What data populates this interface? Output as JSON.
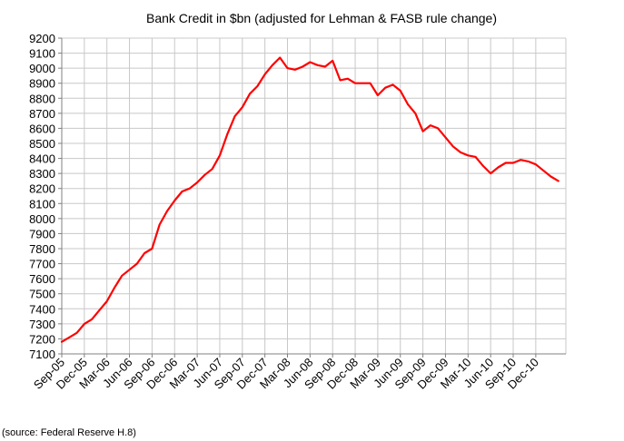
{
  "chart_data": {
    "type": "line",
    "title": "Bank Credit in $bn (adjusted for Lehman & FASB rule change)",
    "xlabel": "",
    "ylabel": "",
    "source_note": "(source:  Federal Reserve H.8)",
    "ylim": [
      7100,
      9200
    ],
    "yticks": [
      7100,
      7200,
      7300,
      7400,
      7500,
      7600,
      7700,
      7800,
      7900,
      8000,
      8100,
      8200,
      8300,
      8400,
      8500,
      8600,
      8700,
      8800,
      8900,
      9000,
      9100,
      9200
    ],
    "xlim": [
      "2005-09",
      "2011-04"
    ],
    "x_tick_labels": [
      "Sep-05",
      "Dec-05",
      "Mar-06",
      "Jun-06",
      "Sep-06",
      "Dec-06",
      "Mar-07",
      "Jun-07",
      "Sep-07",
      "Dec-07",
      "Mar-08",
      "Jun-08",
      "Sep-08",
      "Dec-08",
      "Mar-09",
      "Jun-09",
      "Sep-09",
      "Dec-09",
      "Mar-10",
      "Jun-10",
      "Sep-10",
      "Dec-10"
    ],
    "grid": true,
    "legend": "none",
    "series": [
      {
        "color": "#ff0000",
        "x": [
          "2005-09",
          "2005-10",
          "2005-11",
          "2005-12",
          "2006-01",
          "2006-02",
          "2006-03",
          "2006-04",
          "2006-05",
          "2006-06",
          "2006-07",
          "2006-08",
          "2006-09",
          "2006-10",
          "2006-11",
          "2006-12",
          "2007-01",
          "2007-02",
          "2007-03",
          "2007-04",
          "2007-05",
          "2007-06",
          "2007-07",
          "2007-08",
          "2007-09",
          "2007-10",
          "2007-11",
          "2007-12",
          "2008-01",
          "2008-02",
          "2008-03",
          "2008-04",
          "2008-05",
          "2008-06",
          "2008-07",
          "2008-08",
          "2008-09",
          "2008-10",
          "2008-11",
          "2008-12",
          "2009-01",
          "2009-02",
          "2009-03",
          "2009-04",
          "2009-05",
          "2009-06",
          "2009-07",
          "2009-08",
          "2009-09",
          "2009-10",
          "2009-11",
          "2009-12",
          "2010-01",
          "2010-02",
          "2010-03",
          "2010-04",
          "2010-05",
          "2010-06",
          "2010-07",
          "2010-08",
          "2010-09",
          "2010-10",
          "2010-11",
          "2010-12",
          "2011-01",
          "2011-02",
          "2011-03"
        ],
        "y": [
          7180,
          7210,
          7240,
          7300,
          7330,
          7390,
          7450,
          7540,
          7620,
          7660,
          7700,
          7770,
          7800,
          7960,
          8050,
          8120,
          8180,
          8200,
          8240,
          8290,
          8330,
          8420,
          8560,
          8680,
          8740,
          8830,
          8880,
          8960,
          9020,
          9070,
          9000,
          8990,
          9010,
          9040,
          9020,
          9010,
          9050,
          8920,
          8930,
          8900,
          8900,
          8900,
          8820,
          8870,
          8890,
          8850,
          8760,
          8700,
          8580,
          8620,
          8600,
          8540,
          8480,
          8440,
          8420,
          8410,
          8350,
          8300,
          8340,
          8370,
          8370,
          8390,
          8380,
          8360,
          8320,
          8280,
          8250
        ]
      }
    ]
  }
}
